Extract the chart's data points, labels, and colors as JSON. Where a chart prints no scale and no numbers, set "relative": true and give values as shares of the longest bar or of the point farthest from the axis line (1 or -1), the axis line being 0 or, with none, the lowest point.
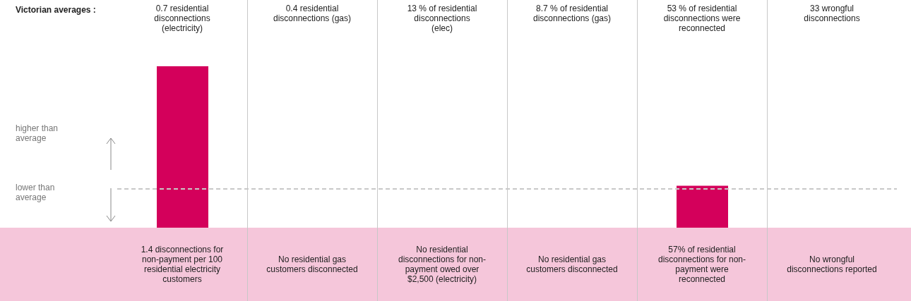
{
  "chart_data": {
    "type": "bar",
    "relative": true,
    "categories": [
      "0.7 residential disconnections (electricity)",
      "0.4 residential disconnections (gas)",
      "13 % of residential disconnections (elec)",
      "8.7 % of residential disconnections (gas)",
      "53 % of residential disconnections were reconnected",
      "33 wrongful disconnections"
    ],
    "values": [
      1,
      0,
      0,
      0,
      0.26,
      0
    ],
    "color": "#d4005b",
    "ref_lines": [
      {
        "axis": "y",
        "value": 0.24,
        "color": "#c8c8c8",
        "line_style": "dashed"
      }
    ],
    "annotations": [
      "Victorian averages :",
      "higher than average",
      "lower than average",
      "1.4 disconnections for non-payment per 100 residential electricity customers",
      "No residential gas customers disconnected",
      "No residential disconnections for non-payment owed over $2,500 (electricity)",
      "No residential gas customers disconnected",
      "57% of residential disconnections for non-payment were reconnected",
      "No wrongful disconnections reported"
    ]
  }
}
